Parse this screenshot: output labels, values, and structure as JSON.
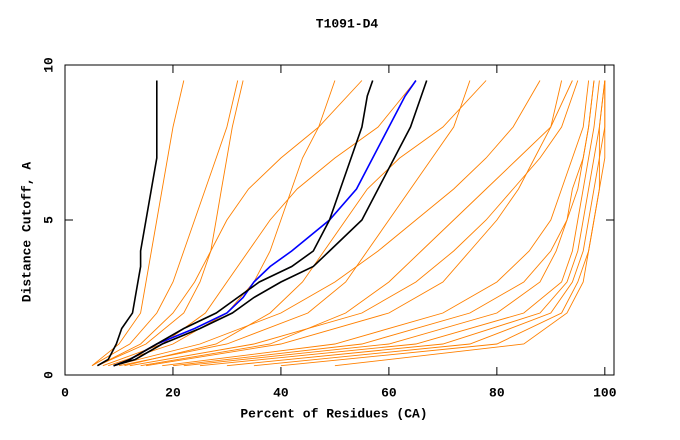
{
  "chart_data": {
    "type": "line",
    "title": "T1091-D4",
    "x_label": "Percent of Residues (CA)",
    "y_label": "Distance Cutoff, A",
    "xlim": [
      0,
      101.7
    ],
    "ylim": [
      0,
      10
    ],
    "xticks": [
      0,
      20,
      40,
      60,
      80,
      100
    ],
    "yticks": [
      0,
      5,
      10
    ],
    "series": [
      {
        "color": "#ff8000",
        "x": [
          5,
          10,
          14,
          15,
          16,
          17,
          18,
          19,
          20,
          22
        ],
        "values": [
          0.3,
          1,
          2,
          3,
          4,
          5,
          6,
          7,
          8,
          9.5
        ]
      },
      {
        "color": "#ff8000",
        "x": [
          6,
          15,
          22,
          25,
          27,
          28,
          29,
          30,
          31,
          33
        ],
        "values": [
          0.3,
          1,
          2,
          3,
          4,
          5,
          6,
          7,
          8,
          9.5
        ]
      },
      {
        "color": "#ff8000",
        "x": [
          8,
          20,
          30,
          35,
          38,
          40,
          42,
          44,
          47,
          50
        ],
        "values": [
          0.3,
          1,
          2,
          3,
          4,
          5,
          6,
          7,
          8,
          9.5
        ]
      },
      {
        "color": "#ff8000",
        "x": [
          10,
          30,
          45,
          52,
          56,
          60,
          64,
          68,
          72,
          75
        ],
        "values": [
          0.3,
          1,
          2,
          3,
          4,
          5,
          6,
          7,
          8,
          9.5
        ]
      },
      {
        "color": "#ff8000",
        "x": [
          15,
          40,
          60,
          70,
          75,
          80,
          84,
          87,
          90,
          92
        ],
        "values": [
          0.3,
          1,
          2,
          3,
          4,
          5,
          6,
          7,
          8,
          9.5
        ]
      },
      {
        "color": "#ff8000",
        "x": [
          20,
          55,
          75,
          85,
          90,
          93,
          95,
          96,
          97,
          98
        ],
        "values": [
          0.3,
          1,
          2,
          3,
          4,
          5,
          6,
          7,
          8,
          9.5
        ]
      },
      {
        "color": "#ff8000",
        "x": [
          30,
          70,
          88,
          93,
          95,
          96,
          97,
          98,
          99,
          100
        ],
        "values": [
          0.3,
          1,
          2,
          3,
          4,
          5,
          6,
          7,
          8,
          9.5
        ]
      },
      {
        "color": "#ff8000",
        "x": [
          25,
          65,
          85,
          92,
          94,
          95,
          96,
          97,
          98,
          99
        ],
        "values": [
          0.3,
          1,
          2,
          3,
          4,
          5,
          6,
          7,
          8,
          9.5
        ]
      },
      {
        "color": "#ff8000",
        "x": [
          40,
          80,
          92,
          95,
          97,
          98,
          99,
          99,
          100,
          100
        ],
        "values": [
          0.3,
          1,
          2,
          3,
          4,
          5,
          6,
          7,
          8,
          9.5
        ]
      },
      {
        "color": "#ff8000",
        "x": [
          12,
          35,
          55,
          65,
          72,
          78,
          83,
          88,
          92,
          95
        ],
        "values": [
          0.3,
          1,
          2,
          3,
          4,
          5,
          6,
          7,
          8,
          9.5
        ]
      },
      {
        "color": "#ff8000",
        "x": [
          7,
          18,
          26,
          30,
          34,
          38,
          43,
          50,
          58,
          65
        ],
        "values": [
          0.3,
          1,
          2,
          3,
          4,
          5,
          6,
          7,
          8,
          9.5
        ]
      },
      {
        "color": "#ff8000",
        "x": [
          9,
          25,
          40,
          50,
          58,
          65,
          72,
          78,
          83,
          88
        ],
        "values": [
          0.3,
          1,
          2,
          3,
          4,
          5,
          6,
          7,
          8,
          9.5
        ]
      },
      {
        "color": "#ff8000",
        "x": [
          18,
          50,
          70,
          80,
          86,
          90,
          92,
          94,
          96,
          97
        ],
        "values": [
          0.3,
          1,
          2,
          3,
          4,
          5,
          6,
          7,
          8,
          9.5
        ]
      },
      {
        "color": "#ff8000",
        "x": [
          35,
          75,
          90,
          94,
          96,
          97,
          98,
          99,
          99,
          100
        ],
        "values": [
          0.3,
          1,
          2,
          3,
          4,
          5,
          6,
          7,
          8,
          9.5
        ]
      },
      {
        "color": "#ff8000",
        "x": [
          6,
          14,
          20,
          24,
          27,
          30,
          34,
          40,
          47,
          55
        ],
        "values": [
          0.3,
          1,
          2,
          3,
          4,
          5,
          6,
          7,
          8,
          9.5
        ]
      },
      {
        "color": "#ff8000",
        "x": [
          50,
          85,
          93,
          96,
          97,
          98,
          99,
          100,
          100,
          100
        ],
        "values": [
          0.3,
          1,
          2,
          3,
          4,
          5,
          6,
          7,
          8,
          9.5
        ]
      },
      {
        "color": "#ff8000",
        "x": [
          11,
          28,
          38,
          44,
          48,
          52,
          56,
          62,
          70,
          78
        ],
        "values": [
          0.3,
          1,
          2,
          3,
          4,
          5,
          6,
          7,
          8,
          9.5
        ]
      },
      {
        "color": "#ff8000",
        "x": [
          22,
          60,
          80,
          88,
          91,
          93,
          94,
          96,
          97,
          98
        ],
        "values": [
          0.3,
          1,
          2,
          3,
          4,
          5,
          6,
          7,
          8,
          9.5
        ]
      },
      {
        "color": "#ff8000",
        "x": [
          5,
          12,
          17,
          20,
          22,
          24,
          26,
          28,
          30,
          32
        ],
        "values": [
          0.3,
          1,
          2,
          3,
          4,
          5,
          6,
          7,
          8,
          9.5
        ]
      },
      {
        "color": "#ff8000",
        "x": [
          14,
          38,
          52,
          60,
          66,
          72,
          78,
          84,
          90,
          94
        ],
        "values": [
          0.3,
          1,
          2,
          3,
          4,
          5,
          6,
          7,
          8,
          9.5
        ]
      },
      {
        "color": "#000000",
        "x": [
          6,
          8,
          9.5,
          10.5,
          12.5,
          13,
          14,
          14,
          15,
          16,
          17,
          17,
          17
        ],
        "values": [
          0.3,
          0.5,
          1,
          1.5,
          2,
          2.5,
          3.5,
          4,
          5,
          6,
          7,
          8,
          9.5
        ]
      },
      {
        "color": "#0000ff",
        "x": [
          9,
          12,
          17,
          24,
          30,
          33,
          35,
          38,
          42,
          49,
          54,
          57,
          60,
          63,
          65
        ],
        "values": [
          0.3,
          0.5,
          1,
          1.5,
          2,
          2.5,
          3,
          3.5,
          4,
          5,
          6,
          7,
          8,
          9,
          9.5
        ]
      },
      {
        "color": "#000000",
        "x": [
          9,
          12,
          17,
          22,
          28,
          32,
          36,
          42,
          46,
          49,
          51,
          53,
          55,
          56,
          57
        ],
        "values": [
          0.3,
          0.5,
          1,
          1.5,
          2,
          2.5,
          3,
          3.5,
          4,
          5,
          6,
          7,
          8,
          9,
          9.5
        ]
      },
      {
        "color": "#000000",
        "x": [
          9,
          13,
          18,
          25,
          31,
          35,
          40,
          46,
          49,
          55,
          58,
          61,
          64,
          66,
          67
        ],
        "values": [
          0.3,
          0.5,
          1,
          1.5,
          2,
          2.5,
          3,
          3.5,
          4,
          5,
          6,
          7,
          8,
          9,
          9.5
        ]
      }
    ]
  }
}
